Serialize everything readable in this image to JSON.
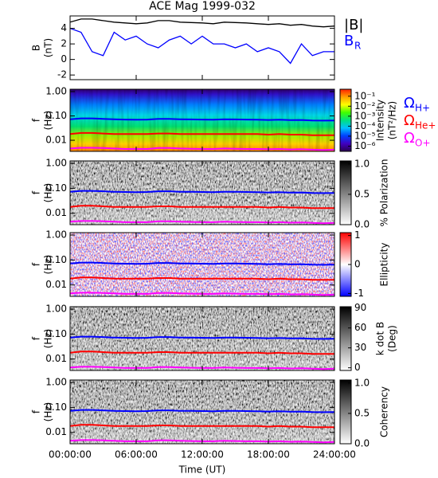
{
  "chart_data": [
    {
      "type": "line",
      "title": "ACE Mag 1999-032",
      "ylabel": [
        "B",
        "(nT)"
      ],
      "ylim": [
        -2.6,
        5.6
      ],
      "yticks": [
        -2,
        0,
        2,
        4
      ],
      "x": [
        0,
        1,
        2,
        3,
        4,
        5,
        6,
        7,
        8,
        9,
        10,
        11,
        12,
        13,
        14,
        15,
        16,
        17,
        18,
        19,
        20,
        21,
        22,
        23,
        24
      ],
      "series": [
        {
          "name": "|B|",
          "color": "#000000",
          "values": [
            4.8,
            5.2,
            5.2,
            5.0,
            4.8,
            4.7,
            4.6,
            4.7,
            5.0,
            5.0,
            4.8,
            4.75,
            4.7,
            4.6,
            4.8,
            4.75,
            4.7,
            4.6,
            4.5,
            4.6,
            4.4,
            4.5,
            4.3,
            4.2,
            4.3
          ]
        },
        {
          "name": "B",
          "name_sub": "R",
          "color": "#0000ff",
          "values": [
            4.0,
            3.5,
            1.0,
            0.5,
            3.5,
            2.5,
            3.0,
            2.0,
            1.5,
            2.5,
            3.0,
            2.0,
            3.0,
            2.0,
            2.0,
            1.5,
            2.0,
            1.0,
            1.5,
            1.0,
            -0.5,
            2.0,
            0.5,
            1.0,
            1.0
          ]
        }
      ]
    },
    {
      "type": "spectrogram",
      "ylabel": [
        "f",
        "(Hz)"
      ],
      "ylog": true,
      "ylim": [
        0.0035,
        1.25
      ],
      "yticks": [
        {
          "value": 1,
          "label": "1.00"
        },
        {
          "value": 0.1,
          "label": "0.10"
        },
        0.01
      ],
      "colorbar": {
        "label": [
          "Intensity",
          "(nT²/Hz)"
        ],
        "log": true,
        "zlim": [
          3e-07,
          0.5
        ],
        "zticks": [
          {
            "value": 0.1,
            "label": "10⁻¹"
          },
          {
            "value": 0.01,
            "label": "10⁻²"
          },
          {
            "value": 0.001,
            "label": "10⁻³"
          },
          {
            "value": 0.0001,
            "label": "10⁻⁴"
          },
          {
            "value": 1e-05,
            "label": "10⁻⁵"
          },
          {
            "value": 1e-06,
            "label": "10⁻⁶"
          }
        ],
        "colors": [
          "#2a0050",
          "#4000c0",
          "#0040ff",
          "#00c0ff",
          "#00e080",
          "#40ff00",
          "#ffff00",
          "#ffa000",
          "#ff2000"
        ]
      },
      "series": [
        {
          "name": "Ω",
          "name_sub": "H+",
          "color": "#0000ff",
          "values": [
            0.073,
            0.079,
            0.079,
            0.076,
            0.073,
            0.071,
            0.07,
            0.071,
            0.076,
            0.076,
            0.073,
            0.072,
            0.071,
            0.07,
            0.073,
            0.072,
            0.071,
            0.07,
            0.068,
            0.07,
            0.067,
            0.068,
            0.065,
            0.064,
            0.065
          ]
        },
        {
          "name": "Ω",
          "name_sub": "He+",
          "color": "#ff0000",
          "values": [
            0.018,
            0.02,
            0.02,
            0.019,
            0.018,
            0.018,
            0.018,
            0.018,
            0.019,
            0.019,
            0.018,
            0.018,
            0.018,
            0.018,
            0.018,
            0.018,
            0.018,
            0.018,
            0.017,
            0.018,
            0.017,
            0.017,
            0.016,
            0.016,
            0.016
          ]
        },
        {
          "name": "Ω",
          "name_sub": "O+",
          "color": "#ff00ff",
          "values": [
            0.0046,
            0.0049,
            0.0049,
            0.0048,
            0.0046,
            0.0044,
            0.0044,
            0.0044,
            0.0048,
            0.0048,
            0.0046,
            0.0045,
            0.0044,
            0.0044,
            0.0046,
            0.0045,
            0.0044,
            0.0044,
            0.0043,
            0.0044,
            0.0042,
            0.0043,
            0.0041,
            0.004,
            0.0041
          ]
        }
      ]
    },
    {
      "type": "spectrogram",
      "ylabel": [
        "f",
        "(Hz)"
      ],
      "ylog": true,
      "ylim": [
        0.0035,
        1.25
      ],
      "yticks": [
        {
          "value": 1,
          "label": "1.00"
        },
        {
          "value": 0.1,
          "label": "0.10"
        },
        0.01
      ],
      "colorbar": {
        "label": [
          "% Polarization"
        ],
        "zlim": [
          0,
          1.05
        ],
        "zticks": [
          {
            "value": 0,
            "label": "0.0"
          },
          0.5,
          {
            "value": 1,
            "label": "1.0"
          }
        ],
        "colors": [
          "#ffffff",
          "#000000"
        ]
      }
    },
    {
      "type": "spectrogram",
      "ylabel": [
        "f",
        "(Hz)"
      ],
      "ylog": true,
      "ylim": [
        0.0035,
        1.25
      ],
      "yticks": [
        {
          "value": 1,
          "label": "1.00"
        },
        {
          "value": 0.1,
          "label": "0.10"
        },
        0.01
      ],
      "colorbar": {
        "label": [
          "Ellipticity"
        ],
        "zlim": [
          -1.1,
          1.1
        ],
        "zticks": [
          -1,
          0,
          1
        ],
        "colors": [
          "#0000ff",
          "#ffffff",
          "#ff0000"
        ]
      }
    },
    {
      "type": "spectrogram",
      "ylabel": [
        "f",
        "(Hz)"
      ],
      "ylog": true,
      "ylim": [
        0.0035,
        1.25
      ],
      "yticks": [
        {
          "value": 1,
          "label": "1.00"
        },
        {
          "value": 0.1,
          "label": "0.10"
        },
        0.01
      ],
      "colorbar": {
        "label": [
          "k dot B",
          "(Deg)"
        ],
        "zlim": [
          -4,
          92
        ],
        "zticks": [
          0,
          30,
          60,
          90
        ],
        "colors": [
          "#ffffff",
          "#000000"
        ]
      }
    },
    {
      "type": "spectrogram",
      "ylabel": [
        "f",
        "(Hz)"
      ],
      "ylog": true,
      "ylim": [
        0.0035,
        1.25
      ],
      "yticks": [
        {
          "value": 1,
          "label": "1.00"
        },
        {
          "value": 0.1,
          "label": "0.10"
        },
        0.01
      ],
      "colorbar": {
        "label": [
          "Coherency"
        ],
        "zlim": [
          0,
          1.05
        ],
        "zticks": [
          {
            "value": 0,
            "label": "0.0"
          },
          0.5,
          {
            "value": 1,
            "label": "1.0"
          }
        ],
        "colors": [
          "#ffffff",
          "#000000"
        ]
      },
      "xlabel": "Time (UT)",
      "xlim": [
        0,
        24
      ],
      "xticks": [
        {
          "value": 0,
          "label": "00:00:00"
        },
        {
          "value": 6,
          "label": "06:00:00"
        },
        {
          "value": 12,
          "label": "12:00:00"
        },
        {
          "value": 18,
          "label": "18:00:00"
        },
        {
          "value": 24,
          "label": "24:00:00"
        }
      ]
    }
  ]
}
